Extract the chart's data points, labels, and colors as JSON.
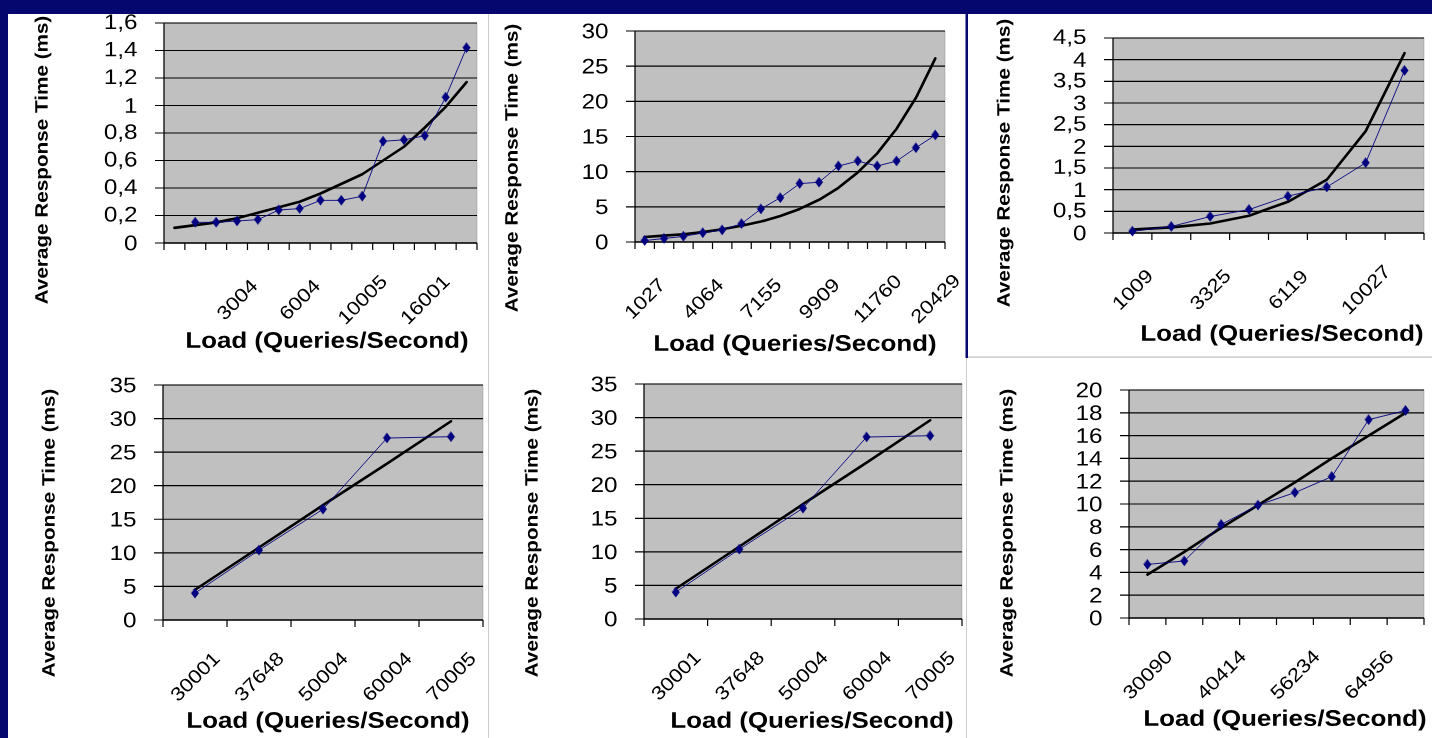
{
  "chart_data": [
    {
      "type": "line",
      "xlabel": "Load (Queries/Second)",
      "ylabel": "Average Response Time (ms)",
      "categories": [
        null,
        null,
        null,
        "3004",
        null,
        null,
        "6004",
        null,
        null,
        "10005",
        null,
        null,
        "16001",
        null,
        null
      ],
      "ylim": [
        0,
        1.6
      ],
      "yticks": [
        0,
        {
          "value": 0.2,
          "label": "0,2"
        },
        {
          "value": 0.4,
          "label": "0,4"
        },
        {
          "value": 0.6,
          "label": "0,6"
        },
        {
          "value": 0.8,
          "label": "0,8"
        },
        1,
        {
          "value": 1.2,
          "label": "1,2"
        },
        {
          "value": 1.4,
          "label": "1,4"
        },
        {
          "value": 1.6,
          "label": "1,6"
        }
      ],
      "grid": "y",
      "series": [
        {
          "type": "line",
          "color": "#000000",
          "marker": "none",
          "values": [
            0.11,
            0.13,
            0.15,
            0.18,
            0.22,
            0.26,
            0.3,
            0.36,
            0.43,
            0.5,
            0.6,
            0.7,
            0.84,
            0.99,
            1.17
          ]
        },
        {
          "color": "#000080",
          "marker": "diamond",
          "values": [
            null,
            0.15,
            0.15,
            0.16,
            0.17,
            0.24,
            0.25,
            0.31,
            0.31,
            0.34,
            0.74,
            0.75,
            0.78,
            1.06,
            1.42
          ]
        }
      ]
    },
    {
      "type": "line",
      "xlabel": "Load (Queries/Second)",
      "ylabel": "Average Response Time (ms)",
      "categories": [
        "1027",
        null,
        null,
        "4064",
        null,
        null,
        "7155",
        null,
        null,
        "9909",
        null,
        null,
        "11760",
        null,
        null,
        "20429"
      ],
      "ylim": [
        0,
        30
      ],
      "yticks": [
        0,
        5,
        10,
        15,
        20,
        25,
        30
      ],
      "grid": "y",
      "series": [
        {
          "type": "line",
          "color": "#000000",
          "marker": "none",
          "values": [
            0.7,
            0.9,
            1.1,
            1.4,
            1.8,
            2.3,
            2.9,
            3.7,
            4.7,
            6.0,
            7.7,
            9.9,
            12.6,
            16.1,
            20.5,
            26.1
          ]
        },
        {
          "color": "#000080",
          "marker": "diamond",
          "values": [
            0.2,
            0.5,
            0.8,
            1.3,
            1.7,
            2.6,
            4.7,
            6.3,
            8.3,
            8.5,
            10.8,
            11.5,
            10.8,
            11.5,
            13.4,
            15.2
          ]
        }
      ]
    },
    {
      "type": "line",
      "xlabel": "Load (Queries/Second)",
      "ylabel": "Average Response Time (ms)",
      "categories": [
        "1009",
        null,
        "3325",
        null,
        "6119",
        null,
        "10027",
        null
      ],
      "ylim": [
        0,
        4.5
      ],
      "yticks": [
        0,
        {
          "value": 0.5,
          "label": "0,5"
        },
        1,
        {
          "value": 1.5,
          "label": "1,5"
        },
        2,
        {
          "value": 2.5,
          "label": "2,5"
        },
        3,
        {
          "value": 3.5,
          "label": "3,5"
        },
        4,
        {
          "value": 4.5,
          "label": "4,5"
        }
      ],
      "grid": "y",
      "series": [
        {
          "type": "line",
          "color": "#000000",
          "marker": "none",
          "values": [
            0.08,
            0.13,
            0.22,
            0.4,
            0.72,
            1.23,
            2.35,
            4.15
          ]
        },
        {
          "color": "#000080",
          "marker": "diamond",
          "values": [
            0.04,
            0.15,
            0.38,
            0.54,
            0.85,
            1.06,
            1.62,
            3.75
          ]
        }
      ]
    },
    {
      "type": "line",
      "xlabel": "Load (Queries/Second)",
      "ylabel": "Average Response Time (ms)",
      "categories": [
        "30001",
        "37648",
        "50004",
        "60004",
        "70005"
      ],
      "ylim": [
        0,
        35
      ],
      "yticks": [
        0,
        5,
        10,
        15,
        20,
        25,
        30,
        35
      ],
      "grid": "y",
      "series": [
        {
          "type": "line",
          "color": "#000000",
          "marker": "none",
          "values": [
            4.5,
            10.8,
            17.1,
            23.3,
            29.6
          ]
        },
        {
          "color": "#000080",
          "marker": "diamond",
          "values": [
            4.0,
            10.4,
            16.5,
            27.1,
            27.3
          ]
        }
      ]
    },
    {
      "type": "line",
      "xlabel": "Load (Queries/Second)",
      "ylabel": "Average Response Time (ms)",
      "categories": [
        "30001",
        "37648",
        "50004",
        "60004",
        "70005"
      ],
      "ylim": [
        0,
        35
      ],
      "yticks": [
        0,
        5,
        10,
        15,
        20,
        25,
        30,
        35
      ],
      "grid": "y",
      "series": [
        {
          "type": "line",
          "color": "#000000",
          "marker": "none",
          "values": [
            4.5,
            10.8,
            17.1,
            23.3,
            29.6
          ]
        },
        {
          "color": "#000080",
          "marker": "diamond",
          "values": [
            4.0,
            10.4,
            16.5,
            27.1,
            27.3
          ]
        }
      ]
    },
    {
      "type": "line",
      "xlabel": "Load (Queries/Second)",
      "ylabel": "Average Response Time (ms)",
      "categories": [
        "30090",
        null,
        "40414",
        null,
        "56234",
        null,
        "64956",
        null
      ],
      "ylim": [
        0,
        20
      ],
      "yticks": [
        0,
        2,
        4,
        6,
        8,
        10,
        12,
        14,
        16,
        18,
        20
      ],
      "grid": "y",
      "series": [
        {
          "type": "line",
          "color": "#000000",
          "marker": "none",
          "values": [
            3.8,
            5.8,
            7.9,
            9.9,
            11.9,
            14.0,
            16.0,
            18.0
          ]
        },
        {
          "color": "#000080",
          "marker": "diamond",
          "values": [
            4.7,
            5.0,
            8.2,
            9.9,
            11.0,
            12.4,
            17.4,
            18.2
          ]
        }
      ]
    }
  ]
}
